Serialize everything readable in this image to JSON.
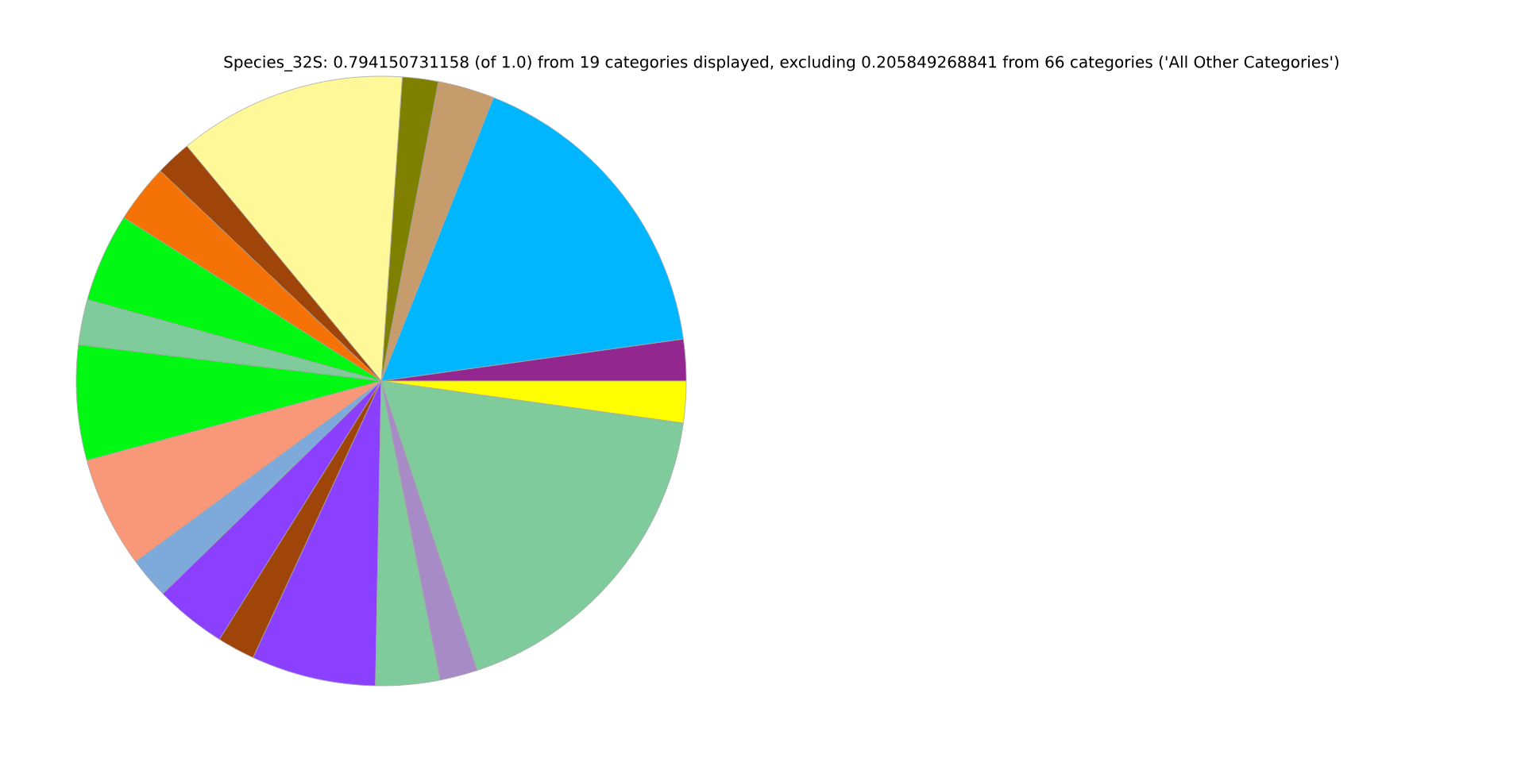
{
  "chart_data": {
    "type": "pie",
    "title": "Species_32S: 0.794150731158 (of 1.0) from 19 categories displayed, excluding 0.205849268841 from 66 categories ('All Other Categories')",
    "categories": [
      null,
      null,
      null,
      null,
      null,
      null,
      null,
      null,
      null,
      null,
      null,
      null,
      null,
      null,
      null,
      null,
      null,
      null,
      null
    ],
    "values": [
      2.2,
      16.8,
      3.0,
      1.9,
      12.1,
      1.9,
      3.1,
      4.7,
      2.4,
      6.1,
      5.9,
      2.2,
      3.8,
      2.0,
      6.6,
      3.4,
      2.0,
      17.7,
      2.2
    ],
    "colors": [
      "#91278f",
      "#00b6ff",
      "#c69c6d",
      "#808000",
      "#fff899",
      "#a0450a",
      "#f47206",
      "#00f813",
      "#80cb9c",
      "#00f813",
      "#f99779",
      "#7eaadb",
      "#8b40ff",
      "#a0450a",
      "#8b40ff",
      "#80cb9c",
      "#a68bc6",
      "#80cb9c",
      "#ffff00"
    ]
  }
}
